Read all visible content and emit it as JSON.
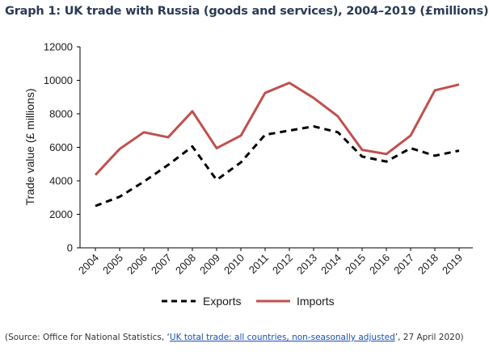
{
  "chart_data": {
    "type": "line",
    "title": "Graph 1: UK trade with Russia (goods and services), 2004–2019 (£millions)",
    "xlabel": "",
    "ylabel": "Trade value (£ millions)",
    "categories": [
      "2004",
      "2005",
      "2006",
      "2007",
      "2008",
      "2009",
      "2010",
      "2011",
      "2012",
      "2013",
      "2014",
      "2015",
      "2016",
      "2017",
      "2018",
      "2019"
    ],
    "ylim": [
      0,
      12000
    ],
    "yticks": [
      "0",
      "2000",
      "4000",
      "6000",
      "8000",
      "10000",
      "12000"
    ],
    "grid": false,
    "legend_position": "bottom",
    "series": [
      {
        "name": "Exports",
        "style": "dashed",
        "color": "#000000",
        "values": [
          2500,
          3050,
          3950,
          4950,
          6050,
          4050,
          5100,
          6750,
          7000,
          7250,
          6900,
          5450,
          5150,
          5950,
          5500,
          5800
        ]
      },
      {
        "name": "Imports",
        "style": "solid",
        "color": "#c0504d",
        "values": [
          4350,
          5900,
          6900,
          6600,
          8150,
          5950,
          6700,
          9250,
          9850,
          8950,
          7850,
          5850,
          5600,
          6700,
          9400,
          9750
        ]
      }
    ]
  },
  "source": {
    "prefix": "(Source: Office for National Statistics, ‘",
    "link_text": "UK total trade: all countries, non-seasonally adjusted",
    "suffix": "’, 27 April 2020)"
  }
}
